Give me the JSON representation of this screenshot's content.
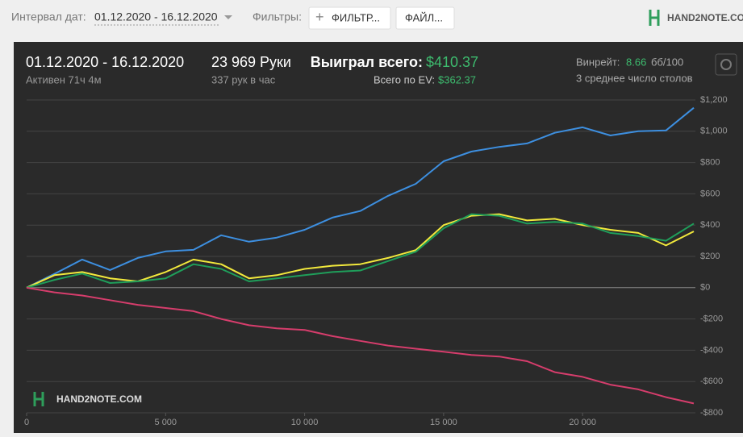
{
  "toolbar": {
    "date_label": "Интервал дат:",
    "date_range": "01.12.2020 - 16.12.2020",
    "filters_label": "Фильтры:",
    "filter_button": "ФИЛЬТР...",
    "file_button": "ФАЙЛ...",
    "logo": "HAND2NOTE.CO"
  },
  "summary": {
    "period": "01.12.2020 - 16.12.2020",
    "active": "Активен 71ч 4м",
    "hands": "23 969 Руки",
    "hands_per_hour": "337 рук в час",
    "won_label": "Выиграл всего:",
    "won_value": "$410.37",
    "ev_label": "Всего по EV:",
    "ev_value": "$362.37",
    "winrate_label": "Винрейт:",
    "winrate_value": "8.66",
    "winrate_unit": "бб/100",
    "tables": "3 среднее число столов"
  },
  "chart_data": {
    "type": "line",
    "watermark": "HAND2NOTE.COM",
    "x": [
      0,
      1000,
      2000,
      3000,
      4000,
      5000,
      6000,
      7000,
      8000,
      9000,
      10000,
      11000,
      12000,
      13000,
      14000,
      15000,
      16000,
      17000,
      18000,
      19000,
      20000,
      21000,
      22000,
      23000,
      24000
    ],
    "series": [
      {
        "color": "#3d8fe0",
        "values": [
          0,
          88,
          180,
          113,
          190,
          232,
          242,
          335,
          294,
          320,
          370,
          448,
          490,
          587,
          664,
          808,
          870,
          900,
          922,
          990,
          1025,
          973,
          1000,
          1005,
          1150
        ]
      },
      {
        "color": "#f2e93c",
        "values": [
          0,
          80,
          100,
          60,
          40,
          100,
          180,
          150,
          60,
          80,
          120,
          140,
          150,
          190,
          240,
          400,
          460,
          470,
          430,
          440,
          400,
          370,
          350,
          270,
          360
        ]
      },
      {
        "color": "#1f9e5a",
        "values": [
          0,
          50,
          90,
          30,
          40,
          60,
          150,
          120,
          40,
          60,
          80,
          100,
          110,
          170,
          230,
          380,
          470,
          460,
          410,
          420,
          410,
          350,
          330,
          300,
          410
        ]
      },
      {
        "color": "#d63d6c",
        "values": [
          0,
          -30,
          -50,
          -80,
          -110,
          -130,
          -150,
          -200,
          -240,
          -260,
          -270,
          -310,
          -340,
          -370,
          -390,
          -410,
          -430,
          -440,
          -470,
          -540,
          -570,
          -620,
          -650,
          -700,
          -740
        ]
      }
    ],
    "xlim": [
      0,
      24000
    ],
    "xticks": [
      0,
      {
        "value": 5000,
        "label": "5 000"
      },
      {
        "value": 10000,
        "label": "10 000"
      },
      {
        "value": 15000,
        "label": "15 000"
      },
      {
        "value": 20000,
        "label": "20 000"
      }
    ],
    "ylim": [
      -800,
      1200
    ],
    "yticks": [
      {
        "value": -800,
        "label": "-$800"
      },
      {
        "value": -600,
        "label": "-$600"
      },
      {
        "value": -400,
        "label": "-$400"
      },
      {
        "value": -200,
        "label": "-$200"
      },
      {
        "value": 0,
        "label": "$0"
      },
      {
        "value": 200,
        "label": "$200"
      },
      {
        "value": 400,
        "label": "$400"
      },
      {
        "value": 600,
        "label": "$600"
      },
      {
        "value": 800,
        "label": "$800"
      },
      {
        "value": 1000,
        "label": "$1,000"
      },
      {
        "value": 1200,
        "label": "$1,200"
      }
    ],
    "grid": true
  }
}
